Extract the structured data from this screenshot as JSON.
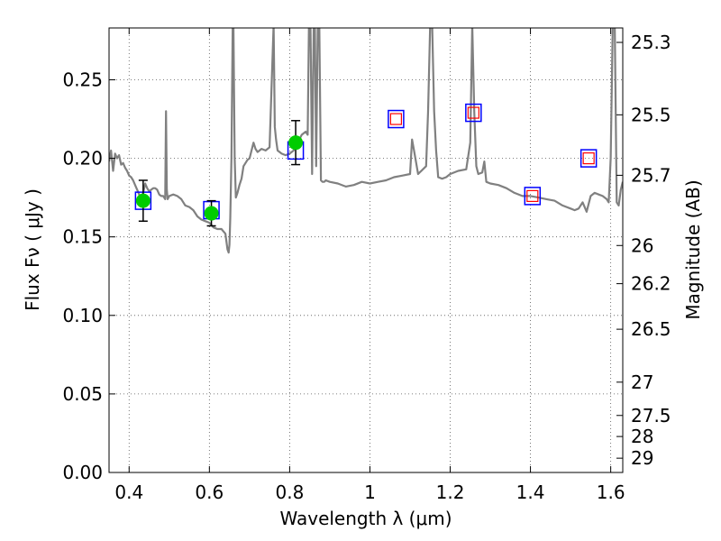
{
  "chart_data": {
    "type": "scatter",
    "xlabel": "Wavelength  λ (μm)",
    "ylabel": "Flux  Fν  ( μJy )",
    "y2label": "Magnitude (AB)",
    "xlim": [
      0.35,
      1.63
    ],
    "ylim": [
      0.0,
      0.283
    ],
    "grid": true,
    "x_ticks": [
      {
        "value": 0.4,
        "label": "0.4"
      },
      {
        "value": 0.6,
        "label": "0.6"
      },
      {
        "value": 0.8,
        "label": "0.8"
      },
      {
        "value": 1.0,
        "label": "1"
      },
      {
        "value": 1.2,
        "label": "1.2"
      },
      {
        "value": 1.4,
        "label": "1.4"
      },
      {
        "value": 1.6,
        "label": "1.6"
      }
    ],
    "y_ticks": [
      {
        "value": 0.0,
        "label": "0.00"
      },
      {
        "value": 0.05,
        "label": "0.05"
      },
      {
        "value": 0.1,
        "label": "0.10"
      },
      {
        "value": 0.15,
        "label": "0.15"
      },
      {
        "value": 0.2,
        "label": "0.20"
      },
      {
        "value": 0.25,
        "label": "0.25"
      }
    ],
    "y2_ticks": [
      {
        "flux": 0.2738,
        "label": "25.3"
      },
      {
        "flux": 0.2277,
        "label": "25.5"
      },
      {
        "flux": 0.1892,
        "label": "25.7"
      },
      {
        "flux": 0.1445,
        "label": "26"
      },
      {
        "flux": 0.1202,
        "label": "26.2"
      },
      {
        "flux": 0.0912,
        "label": "26.5"
      },
      {
        "flux": 0.0575,
        "label": "27"
      },
      {
        "flux": 0.0363,
        "label": "27.5"
      },
      {
        "flux": 0.0229,
        "label": "28"
      },
      {
        "flux": 0.0091,
        "label": "29"
      }
    ],
    "model_spectrum": {
      "color": "#808080",
      "x": [
        0.35,
        0.355,
        0.36,
        0.365,
        0.37,
        0.375,
        0.38,
        0.385,
        0.39,
        0.395,
        0.4,
        0.405,
        0.41,
        0.415,
        0.42,
        0.425,
        0.43,
        0.435,
        0.44,
        0.445,
        0.45,
        0.455,
        0.46,
        0.465,
        0.47,
        0.475,
        0.48,
        0.485,
        0.49,
        0.492,
        0.494,
        0.496,
        0.5,
        0.51,
        0.52,
        0.53,
        0.54,
        0.55,
        0.56,
        0.57,
        0.58,
        0.59,
        0.6,
        0.61,
        0.62,
        0.63,
        0.64,
        0.645,
        0.648,
        0.65,
        0.652,
        0.655,
        0.658,
        0.66,
        0.663,
        0.666,
        0.67,
        0.675,
        0.68,
        0.685,
        0.69,
        0.695,
        0.7,
        0.705,
        0.71,
        0.715,
        0.72,
        0.725,
        0.73,
        0.74,
        0.75,
        0.76,
        0.763,
        0.766,
        0.77,
        0.78,
        0.79,
        0.8,
        0.81,
        0.82,
        0.83,
        0.84,
        0.845,
        0.848,
        0.852,
        0.856,
        0.86,
        0.863,
        0.866,
        0.87,
        0.874,
        0.878,
        0.882,
        0.886,
        0.89,
        0.9,
        0.92,
        0.94,
        0.96,
        0.98,
        1.0,
        1.02,
        1.04,
        1.06,
        1.08,
        1.1,
        1.105,
        1.11,
        1.12,
        1.14,
        1.145,
        1.15,
        1.155,
        1.16,
        1.165,
        1.17,
        1.18,
        1.19,
        1.2,
        1.22,
        1.24,
        1.25,
        1.255,
        1.26,
        1.265,
        1.27,
        1.28,
        1.285,
        1.29,
        1.3,
        1.32,
        1.34,
        1.36,
        1.38,
        1.4,
        1.42,
        1.44,
        1.46,
        1.48,
        1.5,
        1.51,
        1.52,
        1.53,
        1.54,
        1.55,
        1.56,
        1.57,
        1.58,
        1.59,
        1.595,
        1.6,
        1.605,
        1.61,
        1.615,
        1.62,
        1.625,
        1.63
      ],
      "y": [
        0.198,
        0.205,
        0.192,
        0.203,
        0.2,
        0.202,
        0.196,
        0.197,
        0.194,
        0.192,
        0.189,
        0.188,
        0.186,
        0.183,
        0.18,
        0.177,
        0.175,
        0.178,
        0.184,
        0.181,
        0.179,
        0.18,
        0.181,
        0.181,
        0.18,
        0.177,
        0.176,
        0.176,
        0.174,
        0.23,
        0.18,
        0.174,
        0.176,
        0.177,
        0.176,
        0.174,
        0.17,
        0.169,
        0.167,
        0.163,
        0.161,
        0.16,
        0.159,
        0.156,
        0.155,
        0.155,
        0.152,
        0.142,
        0.14,
        0.145,
        0.162,
        0.2,
        0.285,
        0.285,
        0.2,
        0.175,
        0.178,
        0.183,
        0.187,
        0.195,
        0.197,
        0.199,
        0.2,
        0.205,
        0.21,
        0.206,
        0.204,
        0.205,
        0.206,
        0.205,
        0.207,
        0.285,
        0.22,
        0.212,
        0.205,
        0.203,
        0.202,
        0.203,
        0.205,
        0.21,
        0.215,
        0.217,
        0.215,
        0.285,
        0.285,
        0.19,
        0.285,
        0.285,
        0.195,
        0.285,
        0.285,
        0.186,
        0.185,
        0.185,
        0.186,
        0.185,
        0.184,
        0.182,
        0.183,
        0.185,
        0.184,
        0.185,
        0.186,
        0.188,
        0.189,
        0.19,
        0.212,
        0.205,
        0.19,
        0.195,
        0.23,
        0.285,
        0.285,
        0.23,
        0.205,
        0.188,
        0.187,
        0.188,
        0.19,
        0.192,
        0.193,
        0.21,
        0.285,
        0.23,
        0.195,
        0.19,
        0.191,
        0.198,
        0.185,
        0.184,
        0.183,
        0.181,
        0.178,
        0.176,
        0.176,
        0.175,
        0.174,
        0.173,
        0.17,
        0.168,
        0.167,
        0.168,
        0.172,
        0.166,
        0.176,
        0.178,
        0.177,
        0.176,
        0.174,
        0.172,
        0.2,
        0.285,
        0.285,
        0.172,
        0.17,
        0.18,
        0.185
      ]
    },
    "measured_points": [
      {
        "x": 0.435,
        "y": 0.173,
        "yerr": 0.013
      },
      {
        "x": 0.605,
        "y": 0.165,
        "yerr": 0.008
      },
      {
        "x": 0.815,
        "y": 0.21,
        "yerr": 0.014
      }
    ],
    "model_band_points": [
      {
        "x": 0.435,
        "y": 0.173
      },
      {
        "x": 0.605,
        "y": 0.167
      },
      {
        "x": 0.815,
        "y": 0.205
      },
      {
        "x": 1.065,
        "y": 0.225
      },
      {
        "x": 1.258,
        "y": 0.229
      },
      {
        "x": 1.405,
        "y": 0.176
      },
      {
        "x": 1.545,
        "y": 0.2
      }
    ],
    "upper_points": [
      {
        "x": 1.065,
        "y": 0.225
      },
      {
        "x": 1.258,
        "y": 0.229
      },
      {
        "x": 1.405,
        "y": 0.176
      },
      {
        "x": 1.545,
        "y": 0.2
      }
    ],
    "colors": {
      "measured": "#00cc00",
      "model_band": "#0000ff",
      "upper": "#ff0000",
      "spectrum": "#808080",
      "grid": "#555555"
    }
  }
}
